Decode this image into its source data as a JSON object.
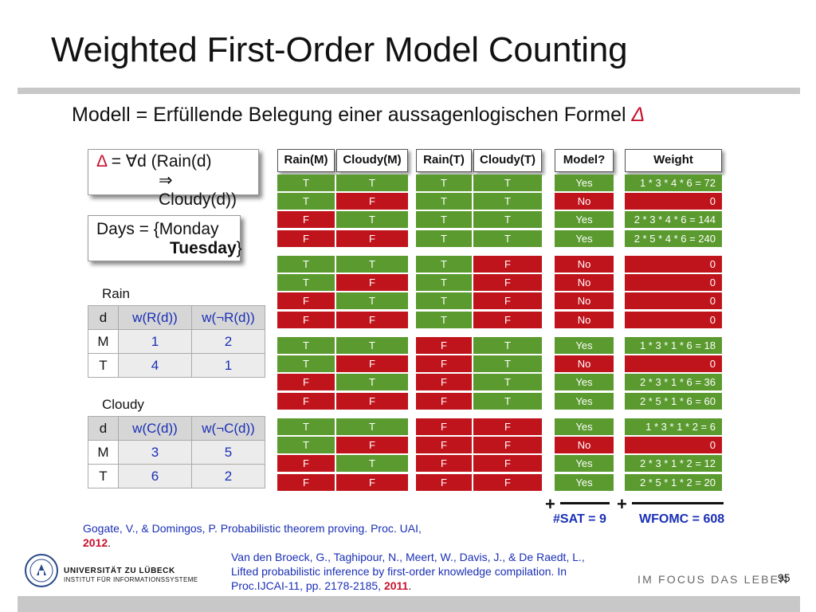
{
  "title": "Weighted First-Order Model Counting",
  "subtitle": {
    "text": "Modell = Erfüllende Belegung einer aussagenlogischen Formel ",
    "delta": "Δ"
  },
  "formula": {
    "delta": "Δ",
    "line1_rest": " = ∀d (Rain(d)",
    "line2": "⇒ Cloudy(d))"
  },
  "days": {
    "line1": "Days = {Monday",
    "line2_bold": "Tuesday",
    "line2_end": "}"
  },
  "rain_table": {
    "label": "Rain",
    "headers": [
      "d",
      "w(R(d))",
      "w(¬R(d))"
    ],
    "rows": [
      [
        "M",
        "1",
        "2"
      ],
      [
        "T",
        "4",
        "1"
      ]
    ]
  },
  "cloudy_table": {
    "label": "Cloudy",
    "headers": [
      "d",
      "w(C(d))",
      "w(¬C(d))"
    ],
    "rows": [
      [
        "M",
        "3",
        "5"
      ],
      [
        "T",
        "6",
        "2"
      ]
    ]
  },
  "model_table": {
    "headers": [
      "Rain(M)",
      "Cloudy(M)",
      "Rain(T)",
      "Cloudy(T)",
      "Model?",
      "Weight"
    ],
    "rows": [
      [
        "T",
        "T",
        "T",
        "T",
        "Yes",
        "1 * 3 * 4 * 6 =  72"
      ],
      [
        "T",
        "F",
        "T",
        "T",
        "No",
        "0"
      ],
      [
        "F",
        "T",
        "T",
        "T",
        "Yes",
        "2 * 3 * 4 * 6 = 144"
      ],
      [
        "F",
        "F",
        "T",
        "T",
        "Yes",
        "2 * 5 * 4 * 6 = 240"
      ],
      [
        "T",
        "T",
        "T",
        "F",
        "No",
        "0"
      ],
      [
        "T",
        "F",
        "T",
        "F",
        "No",
        "0"
      ],
      [
        "F",
        "T",
        "T",
        "F",
        "No",
        "0"
      ],
      [
        "F",
        "F",
        "T",
        "F",
        "No",
        "0"
      ],
      [
        "T",
        "T",
        "F",
        "T",
        "Yes",
        "1 * 3 * 1 * 6 =  18"
      ],
      [
        "T",
        "F",
        "F",
        "T",
        "No",
        "0"
      ],
      [
        "F",
        "T",
        "F",
        "T",
        "Yes",
        "2 * 3 * 1 * 6 =  36"
      ],
      [
        "F",
        "F",
        "F",
        "T",
        "Yes",
        "2 * 5 * 1 * 6 =  60"
      ],
      [
        "T",
        "T",
        "F",
        "F",
        "Yes",
        "1 * 3 * 1 * 2 =    6"
      ],
      [
        "T",
        "F",
        "F",
        "F",
        "No",
        "0"
      ],
      [
        "F",
        "T",
        "F",
        "F",
        "Yes",
        "2 * 3 * 1 * 2 =  12"
      ],
      [
        "F",
        "F",
        "F",
        "F",
        "Yes",
        "2 * 5 * 1 * 2 =  20"
      ]
    ],
    "colors": {
      "true": "#5a9a2f",
      "false": "#c0141c"
    }
  },
  "sums": {
    "plus": "+",
    "sat_label": "#SAT",
    "sat_eq": " = ",
    "sat_value": "9",
    "wfomc_label": "WFOMC",
    "wfomc_eq": " = ",
    "wfomc_value": "608"
  },
  "references": {
    "ref1_text": "Gogate, V., & Domingos, P. Probabilistic theorem proving. Proc. UAI,",
    "ref1_year": "2012",
    "ref1_end": ".",
    "ref2_line1": "Van den Broeck, G., Taghipour, N., Meert, W., Davis, J., & De Raedt, L.,",
    "ref2_line2": "Lifted probabilistic inference by first-order knowledge compilation. In",
    "ref2_line3": "Proc.IJCAI-11, pp. 2178-2185, ",
    "ref2_year": "2011",
    "ref2_end": "."
  },
  "footer": {
    "university": "UNIVERSITÄT ZU LÜBECK",
    "institute": "INSTITUT FÜR INFORMATIONSSYSTEME",
    "motto": "IM FOCUS DAS LEBEN",
    "page_number": "95"
  }
}
